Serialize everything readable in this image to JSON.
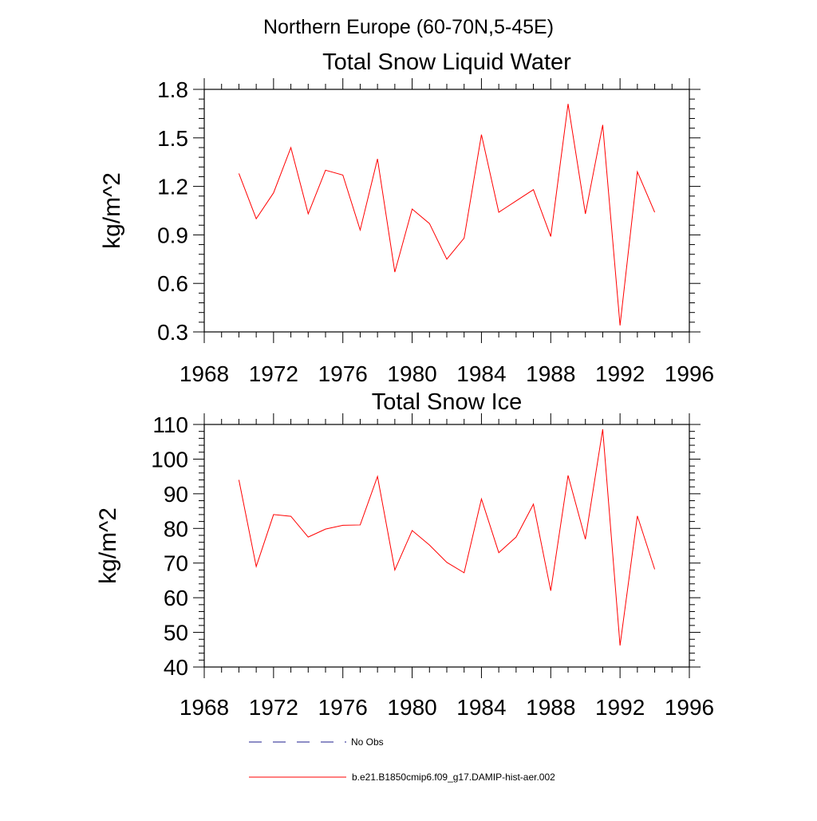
{
  "figure": {
    "suptitle": "Northern Europe (60-70N,5-45E)"
  },
  "legend": {
    "entries": [
      {
        "label": "No Obs",
        "color": "#1c1c8c",
        "style": "dashed"
      },
      {
        "label": "b.e21.B1850cmip6.f09_g17.DAMIP-hist-aer.002",
        "color": "#ff0000",
        "style": "solid"
      }
    ]
  },
  "chart_data": [
    {
      "type": "line",
      "title": "Total Snow Liquid Water",
      "xlabel": "",
      "ylabel": "kg/m^2",
      "xlim": [
        1968,
        1996
      ],
      "ylim": [
        0.3,
        1.8
      ],
      "xticks": [
        1968,
        1972,
        1976,
        1980,
        1984,
        1988,
        1992,
        1996
      ],
      "xtick_labels": [
        "1968",
        "1972",
        "1976",
        "1980",
        "1984",
        "1988",
        "1992",
        "1996"
      ],
      "yticks": [
        0.3,
        0.6,
        0.9,
        1.2,
        1.5,
        1.8
      ],
      "ytick_labels": [
        "0.3",
        "0.6",
        "0.9",
        "1.2",
        "1.5",
        "1.8"
      ],
      "grid": false,
      "series": [
        {
          "name": "b.e21.B1850cmip6.f09_g17.DAMIP-hist-aer.002",
          "color": "#ff0000",
          "x": [
            1970,
            1971,
            1972,
            1973,
            1974,
            1975,
            1976,
            1977,
            1978,
            1979,
            1980,
            1981,
            1982,
            1983,
            1984,
            1985,
            1986,
            1987,
            1988,
            1989,
            1990,
            1991,
            1992,
            1993,
            1994
          ],
          "values": [
            1.28,
            1.0,
            1.16,
            1.44,
            1.03,
            1.3,
            1.27,
            0.93,
            1.37,
            0.67,
            1.06,
            0.97,
            0.75,
            0.88,
            1.52,
            1.04,
            1.11,
            1.18,
            0.89,
            1.71,
            1.03,
            1.58,
            0.34,
            1.29,
            1.04
          ]
        }
      ]
    },
    {
      "type": "line",
      "title": "Total Snow Ice",
      "xlabel": "",
      "ylabel": "kg/m^2",
      "xlim": [
        1968,
        1996
      ],
      "ylim": [
        40,
        110
      ],
      "xticks": [
        1968,
        1972,
        1976,
        1980,
        1984,
        1988,
        1992,
        1996
      ],
      "xtick_labels": [
        "1968",
        "1972",
        "1976",
        "1980",
        "1984",
        "1988",
        "1992",
        "1996"
      ],
      "yticks": [
        40,
        50,
        60,
        70,
        80,
        90,
        100,
        110
      ],
      "ytick_labels": [
        "40",
        "50",
        "60",
        "70",
        "80",
        "90",
        "100",
        "110"
      ],
      "grid": false,
      "series": [
        {
          "name": "b.e21.B1850cmip6.f09_g17.DAMIP-hist-aer.002",
          "color": "#ff0000",
          "x": [
            1970,
            1971,
            1972,
            1973,
            1974,
            1975,
            1976,
            1977,
            1978,
            1979,
            1980,
            1981,
            1982,
            1983,
            1984,
            1985,
            1986,
            1987,
            1988,
            1989,
            1990,
            1991,
            1992,
            1993,
            1994
          ],
          "values": [
            94,
            69,
            84,
            83.5,
            77.5,
            79.8,
            80.9,
            81,
            95,
            68,
            79.4,
            75.2,
            70.2,
            67.2,
            88.5,
            73,
            77.5,
            87,
            62,
            95.3,
            76.9,
            108.6,
            46.2,
            83.6,
            68.2
          ]
        }
      ]
    }
  ]
}
